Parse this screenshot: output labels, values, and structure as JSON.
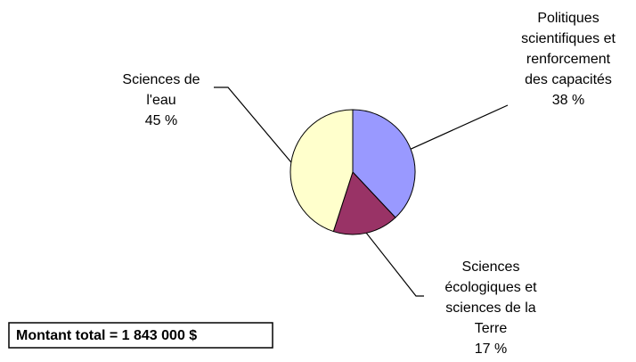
{
  "chart_data": {
    "type": "pie",
    "categories": [
      [
        "Politiques",
        "scientifiques et",
        "renforcement",
        "des capacités"
      ],
      [
        "Sciences",
        "écologiques et",
        "sciences de la",
        "Terre"
      ],
      [
        "Sciences de",
        "l'eau"
      ]
    ],
    "values": [
      38,
      17,
      45
    ],
    "value_labels": [
      "38 %",
      "17 %",
      "45 %"
    ],
    "colors": [
      "#9999ff",
      "#993366",
      "#ffffcc"
    ],
    "annotation": "Montant total = 1 843 000 $"
  }
}
